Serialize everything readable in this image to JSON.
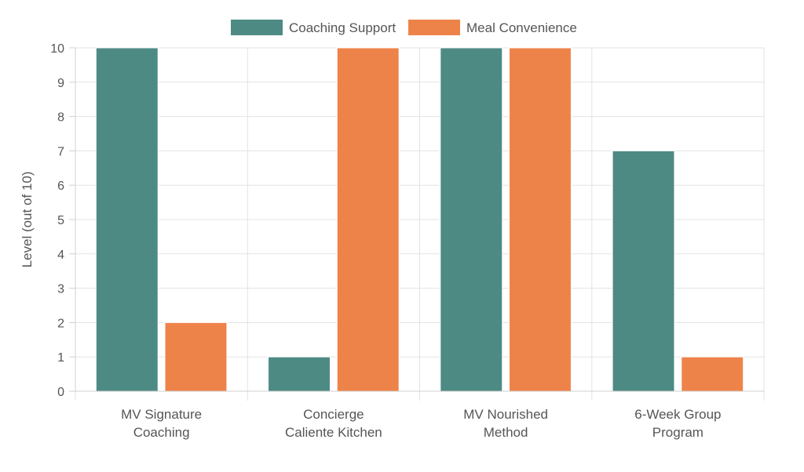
{
  "chart_data": {
    "type": "bar",
    "categories": [
      [
        "MV Signature",
        "Coaching"
      ],
      [
        "Concierge",
        "Caliente Kitchen"
      ],
      [
        "MV Nourished",
        "Method"
      ],
      [
        "6-Week Group",
        "Program"
      ]
    ],
    "series": [
      {
        "name": "Coaching Support",
        "color": "#4e8a84",
        "values": [
          10,
          1,
          10,
          7
        ]
      },
      {
        "name": "Meal Convenience",
        "color": "#ee834a",
        "values": [
          2,
          10,
          10,
          1
        ]
      }
    ],
    "ylabel": "Level (out of 10)",
    "ylim": [
      0,
      10
    ],
    "yticks": [
      0,
      1,
      2,
      3,
      4,
      5,
      6,
      7,
      8,
      9,
      10
    ],
    "grid": true,
    "legend": "top-center"
  }
}
